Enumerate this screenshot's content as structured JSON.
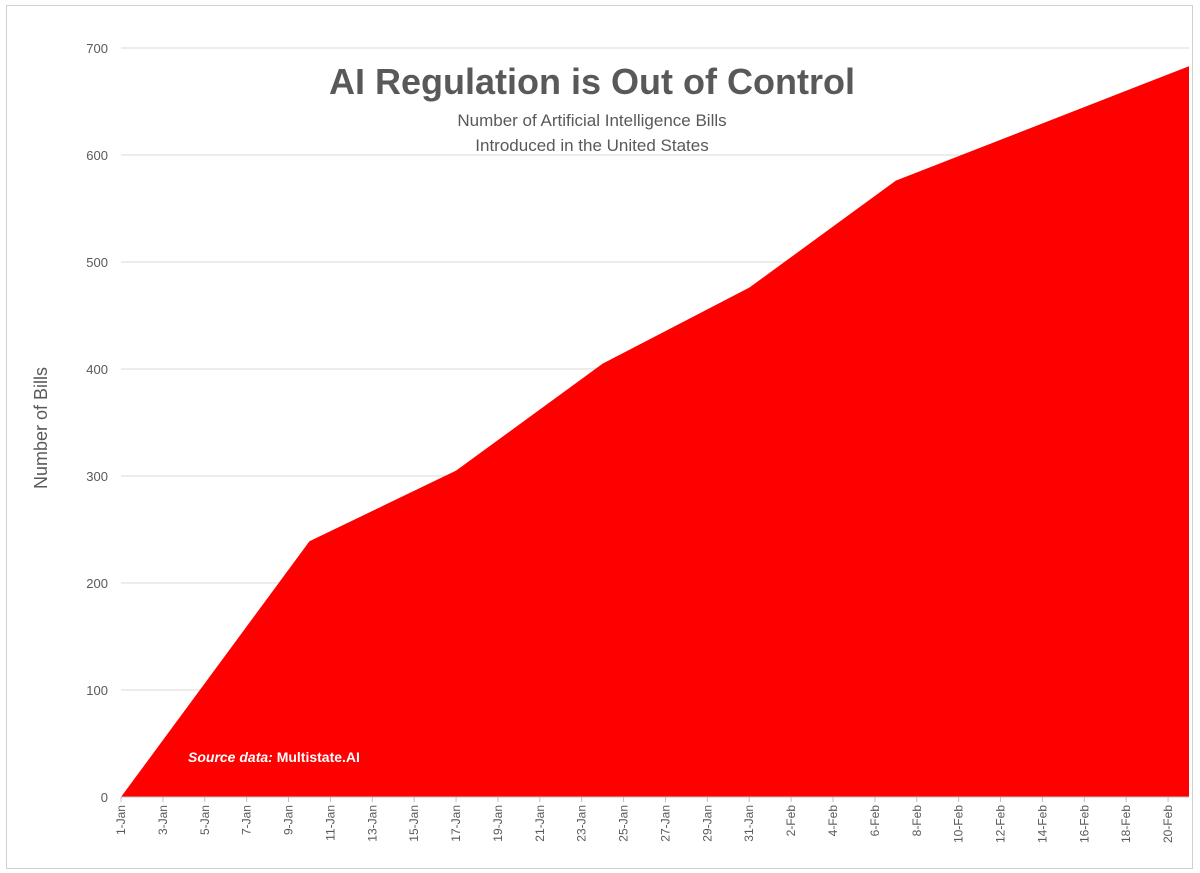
{
  "chart_data": {
    "type": "area",
    "title": "AI Regulation is Out of Control",
    "subtitle_lines": [
      "Number of Artificial Intelligence Bills",
      "Introduced in the United States"
    ],
    "xlabel": "",
    "ylabel": "Number of Bills",
    "ylim": [
      0,
      700
    ],
    "yticks": [
      0,
      100,
      200,
      300,
      400,
      500,
      600,
      700
    ],
    "grid": true,
    "fill_color": "#ff0000",
    "x_tick_labels": [
      "1-Jan",
      "3-Jan",
      "5-Jan",
      "7-Jan",
      "9-Jan",
      "11-Jan",
      "13-Jan",
      "15-Jan",
      "17-Jan",
      "19-Jan",
      "21-Jan",
      "23-Jan",
      "25-Jan",
      "27-Jan",
      "29-Jan",
      "31-Jan",
      "2-Feb",
      "4-Feb",
      "6-Feb",
      "8-Feb",
      "10-Feb",
      "12-Feb",
      "14-Feb",
      "16-Feb",
      "18-Feb",
      "20-Feb"
    ],
    "series": [
      {
        "name": "Number of Bills",
        "points": [
          {
            "day": 0,
            "date": "1-Jan",
            "value": 0
          },
          {
            "day": 9,
            "date": "10-Jan",
            "value": 239
          },
          {
            "day": 16,
            "date": "17-Jan",
            "value": 305
          },
          {
            "day": 23,
            "date": "24-Jan",
            "value": 405
          },
          {
            "day": 30,
            "date": "31-Jan",
            "value": 476
          },
          {
            "day": 37,
            "date": "7-Feb",
            "value": 576
          },
          {
            "day": 51,
            "date": "21-Feb",
            "value": 683
          }
        ]
      }
    ],
    "x_days_max": 51,
    "annotation": {
      "label_italic": "Source data:",
      "label_text": " Multistate.AI"
    }
  }
}
